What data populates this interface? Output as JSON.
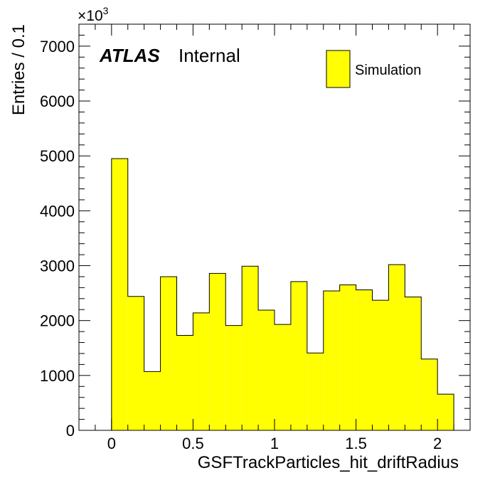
{
  "chart_data": {
    "type": "bar",
    "histogram": true,
    "title": "",
    "xlabel": "GSFTrackParticles_hit_driftRadius",
    "ylabel": "Entries / 0.1",
    "y_multiplier_label": "×10",
    "y_multiplier_exponent": "3",
    "xlim": [
      -0.2,
      2.2
    ],
    "ylim": [
      0,
      7400
    ],
    "x_ticks": [
      0,
      0.5,
      1,
      1.5,
      2
    ],
    "x_tick_labels": [
      "0",
      "0.5",
      "1",
      "1.5",
      "2"
    ],
    "y_ticks": [
      0,
      1000,
      2000,
      3000,
      4000,
      5000,
      6000,
      7000
    ],
    "y_tick_labels": [
      "0",
      "1000",
      "2000",
      "3000",
      "4000",
      "5000",
      "6000",
      "7000"
    ],
    "bin_edges": [
      0,
      0.1,
      0.2,
      0.3,
      0.4,
      0.5,
      0.6,
      0.7,
      0.8,
      0.9,
      1.0,
      1.1,
      1.2,
      1.3,
      1.4,
      1.5,
      1.6,
      1.7,
      1.8,
      1.9,
      2.0,
      2.1
    ],
    "series": [
      {
        "name": "Simulation",
        "color": "#ffff00",
        "values": [
          4950,
          2440,
          1070,
          2800,
          1730,
          2140,
          2860,
          1910,
          2990,
          2190,
          1930,
          2710,
          1410,
          2540,
          2650,
          2560,
          2370,
          3020,
          2430,
          1300,
          660
        ]
      }
    ],
    "legend": {
      "position": "top-right",
      "entries": [
        "Simulation"
      ]
    },
    "annotations": {
      "atlas_label": "ATLAS",
      "atlas_status": "Internal"
    },
    "grid": false
  }
}
